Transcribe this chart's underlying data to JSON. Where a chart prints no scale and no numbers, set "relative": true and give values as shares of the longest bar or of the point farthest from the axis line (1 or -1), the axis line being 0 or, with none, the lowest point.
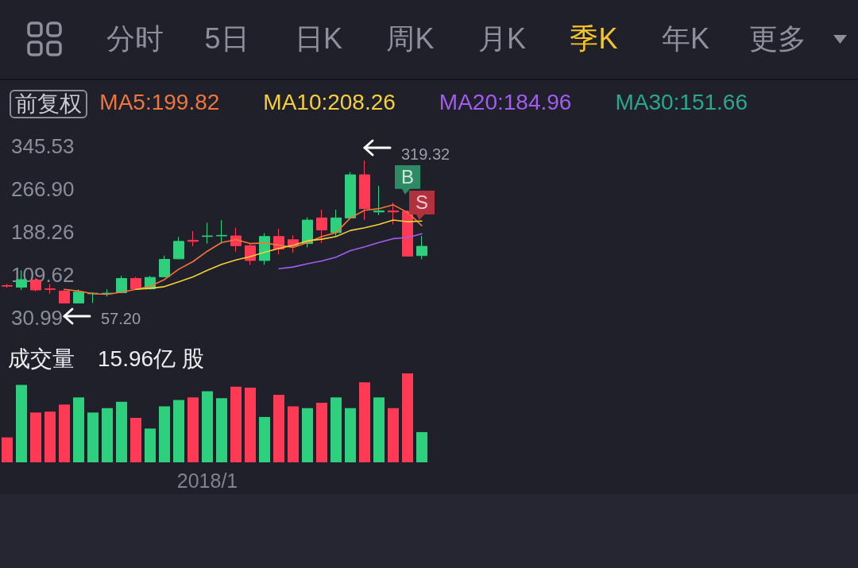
{
  "chart_data": [
    {
      "type": "other",
      "annotations": [
        "分时",
        "5日",
        "日K",
        "周K",
        "月K",
        "季K",
        "年K",
        "更多"
      ],
      "colors": [
        "#8d909a",
        "#8d909a",
        "#8d909a",
        "#8d909a",
        "#8d909a",
        "#f5c526",
        "#8d909a",
        "#8d909a"
      ]
    },
    {
      "type": "candlestick",
      "categories": [
        null,
        null,
        null,
        null,
        null,
        null,
        null,
        null,
        null,
        null,
        null,
        null,
        null,
        null,
        null,
        null,
        null,
        null,
        null,
        null,
        null,
        null,
        null,
        null,
        null,
        null,
        null,
        null,
        null,
        null
      ],
      "ohlc": [
        [
          90,
          93,
          86,
          89
        ],
        [
          87,
          118,
          82,
          101
        ],
        [
          100,
          104,
          79,
          82
        ],
        [
          84,
          93,
          75,
          83
        ],
        [
          80,
          83,
          57.2,
          58
        ],
        [
          58,
          83,
          57.5,
          78
        ],
        [
          75,
          78,
          58,
          76
        ],
        [
          75,
          83,
          70,
          76
        ],
        [
          77,
          108,
          76,
          103
        ],
        [
          103,
          106,
          82,
          84
        ],
        [
          84,
          108,
          83,
          105
        ],
        [
          106,
          145,
          105,
          138
        ],
        [
          139,
          179,
          138,
          171
        ],
        [
          173,
          190,
          162,
          171
        ],
        [
          180,
          205,
          167,
          181
        ],
        [
          181,
          210,
          167,
          182
        ],
        [
          181,
          196,
          152,
          163
        ],
        [
          163,
          167,
          128,
          136
        ],
        [
          136,
          186,
          128,
          180
        ],
        [
          180,
          194,
          147,
          157
        ],
        [
          174,
          182,
          150,
          163
        ],
        [
          167,
          215,
          160,
          210
        ],
        [
          214,
          229,
          168,
          192
        ],
        [
          187,
          229,
          181,
          214
        ],
        [
          214,
          298,
          213,
          293
        ],
        [
          293,
          319.32,
          210,
          231
        ],
        [
          225,
          273,
          219,
          227
        ],
        [
          227,
          242,
          202,
          225
        ],
        [
          226,
          228,
          143,
          144
        ],
        [
          145,
          181,
          138,
          162
        ]
      ],
      "colors": [
        "#fe3a55",
        "#2ecf7d",
        "#fe3a55",
        "#fe3a55",
        "#fe3a55",
        "#2ecf7d",
        "#2ecf7d",
        "#2ecf7d",
        "#2ecf7d",
        "#fe3a55",
        "#2ecf7d",
        "#2ecf7d",
        "#2ecf7d",
        "#fe3a55",
        "#2ecf7d",
        "#2ecf7d",
        "#fe3a55",
        "#fe3a55",
        "#2ecf7d",
        "#fe3a55",
        "#fe3a55",
        "#2ecf7d",
        "#fe3a55",
        "#2ecf7d",
        "#2ecf7d",
        "#fe3a55",
        "#2ecf7d",
        "#fe3a55",
        "#fe3a55",
        "#2ecf7d"
      ],
      "series": [
        {
          "name": "MA5:199.82",
          "type": "line",
          "color": "#f2763b",
          "values": [
            null,
            null,
            null,
            null,
            83,
            80,
            75,
            74,
            78,
            83,
            89,
            101,
            120,
            134,
            153,
            169,
            174,
            167,
            168,
            164,
            160,
            169,
            180,
            187,
            214,
            228,
            231,
            238,
            224,
            199.82
          ]
        },
        {
          "name": "MA10:208.26",
          "type": "line",
          "color": "#f7cf3a",
          "values": [
            null,
            null,
            null,
            null,
            null,
            null,
            null,
            null,
            null,
            83,
            85,
            88,
            97,
            106,
            118,
            129,
            137,
            143,
            151,
            158,
            164,
            172,
            175,
            180,
            191,
            196,
            202,
            210,
            207,
            208.26
          ]
        },
        {
          "name": "MA20:184.96",
          "type": "line",
          "color": "#a35cf0",
          "values": [
            null,
            null,
            null,
            null,
            null,
            null,
            null,
            null,
            null,
            null,
            null,
            null,
            null,
            null,
            null,
            null,
            null,
            null,
            null,
            121,
            124,
            130,
            135,
            142,
            154,
            161,
            169,
            176,
            178,
            184.96
          ]
        },
        {
          "name": "MA30:151.66",
          "type": "line",
          "color": "#29a88b",
          "values": [
            null,
            null,
            null,
            null,
            null,
            null,
            null,
            null,
            null,
            null,
            null,
            null,
            null,
            null,
            null,
            null,
            null,
            null,
            null,
            null,
            null,
            null,
            null,
            null,
            null,
            null,
            null,
            null,
            null,
            null
          ]
        }
      ],
      "ylim": [
        30.99,
        345.53
      ],
      "yticks": [
        30.99,
        109.62,
        188.26,
        {
          "value": 266.9,
          "label": "266.90"
        },
        345.53
      ],
      "tick_labels": "y",
      "legend": "top right",
      "marker": "none",
      "annotations": [
        "前复权",
        "319.32",
        "57.20",
        "B",
        "S"
      ]
    },
    {
      "type": "bar",
      "title": "成交量",
      "subtitle": "15.96亿 股",
      "relative": true,
      "categories": [
        null,
        null,
        null,
        null,
        null,
        null,
        null,
        null,
        null,
        null,
        null,
        null,
        null,
        null,
        "2018/1",
        null,
        null,
        null,
        null,
        null,
        null,
        null,
        null,
        null,
        null,
        null,
        null,
        null,
        null,
        null
      ],
      "values": [
        0.28,
        0.87,
        0.56,
        0.57,
        0.65,
        0.73,
        0.56,
        0.61,
        0.68,
        0.5,
        0.38,
        0.63,
        0.7,
        0.73,
        0.8,
        0.72,
        0.85,
        0.84,
        0.51,
        0.76,
        0.63,
        0.61,
        0.67,
        0.73,
        0.61,
        0.9,
        0.73,
        0.61,
        1,
        0.34
      ],
      "colors": [
        "#fe3a55",
        "#2ecf7d",
        "#fe3a55",
        "#fe3a55",
        "#fe3a55",
        "#2ecf7d",
        "#2ecf7d",
        "#2ecf7d",
        "#2ecf7d",
        "#fe3a55",
        "#2ecf7d",
        "#2ecf7d",
        "#2ecf7d",
        "#fe3a55",
        "#2ecf7d",
        "#2ecf7d",
        "#fe3a55",
        "#fe3a55",
        "#2ecf7d",
        "#fe3a55",
        "#fe3a55",
        "#2ecf7d",
        "#fe3a55",
        "#2ecf7d",
        "#2ecf7d",
        "#fe3a55",
        "#2ecf7d",
        "#fe3a55",
        "#fe3a55",
        "#2ecf7d"
      ]
    }
  ]
}
